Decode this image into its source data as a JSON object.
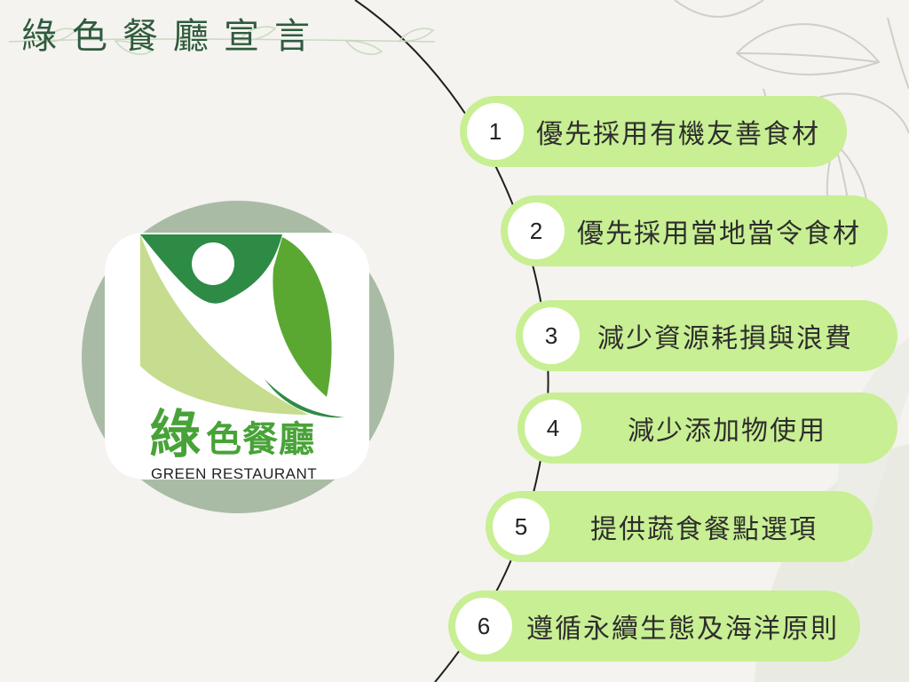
{
  "page": {
    "title": "綠色餐廳宣言"
  },
  "logo": {
    "name_zh_big": "綠",
    "name_zh_rest": "色餐廳",
    "name_en": "GREEN RESTAURANT"
  },
  "declarations": [
    {
      "number": "1",
      "text": "優先採用有機友善食材"
    },
    {
      "number": "2",
      "text": "優先採用當地當令食材"
    },
    {
      "number": "3",
      "text": "減少資源耗損與浪費"
    },
    {
      "number": "4",
      "text": "減少添加物使用"
    },
    {
      "number": "5",
      "text": "提供蔬食餐點選項"
    },
    {
      "number": "6",
      "text": "遵循永續生態及海洋原則"
    }
  ],
  "colors": {
    "background": "#f4f3ef",
    "title": "#2f5b3e",
    "pill": "#c8ef93",
    "logo_circle": "#a9bba5",
    "logo_dark_green": "#2e8b46",
    "logo_mid_green": "#5aa832",
    "logo_light_green": "#c6dc8e"
  },
  "icons": [
    "leaf-decoration-icon",
    "green-restaurant-logo-icon"
  ]
}
